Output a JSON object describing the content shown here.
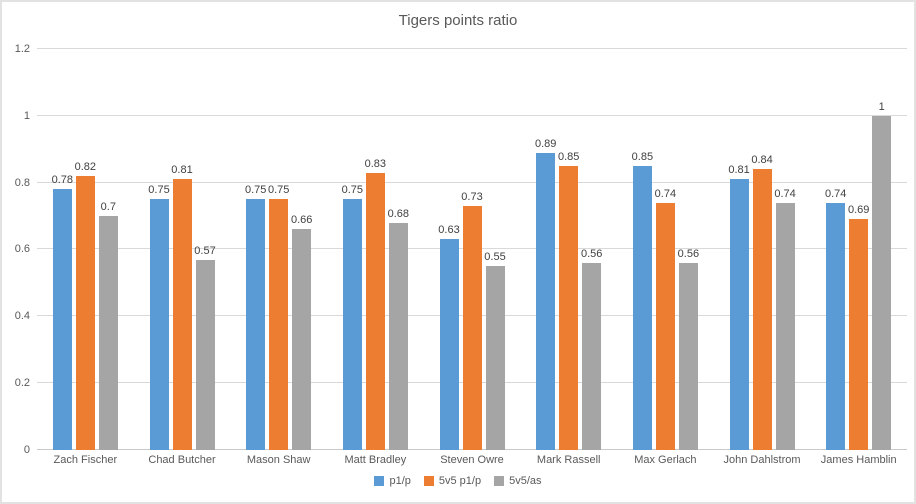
{
  "chart_data": {
    "type": "bar",
    "title": "Tigers points ratio",
    "categories": [
      "Zach Fischer",
      "Chad Butcher",
      "Mason Shaw",
      "Matt Bradley",
      "Steven Owre",
      "Mark Rassell",
      "Max Gerlach",
      "John Dahlstrom",
      "James Hamblin"
    ],
    "series": [
      {
        "name": "p1/p",
        "color": "#5b9bd5",
        "values": [
          0.78,
          0.75,
          0.75,
          0.75,
          0.63,
          0.89,
          0.85,
          0.81,
          0.74
        ]
      },
      {
        "name": "5v5 p1/p",
        "color": "#ed7d31",
        "values": [
          0.82,
          0.81,
          0.75,
          0.83,
          0.73,
          0.85,
          0.74,
          0.84,
          0.69
        ]
      },
      {
        "name": "5v5/as",
        "color": "#a5a5a5",
        "values": [
          0.7,
          0.57,
          0.66,
          0.68,
          0.55,
          0.56,
          0.56,
          0.74,
          1
        ]
      }
    ],
    "ylim": [
      0,
      1.2
    ],
    "ytick_step": 0.2,
    "ytick_labels": [
      "0",
      "0.2",
      "0.4",
      "0.6",
      "0.8",
      "1",
      "1.2"
    ],
    "grid": true,
    "data_labels": true,
    "legend_position": "bottom"
  },
  "styles": {
    "gridline_color": "#d9d9d9",
    "axis_text_color": "#595959",
    "data_label_color": "#404040",
    "title_color": "#595959",
    "background": "#ffffff"
  }
}
